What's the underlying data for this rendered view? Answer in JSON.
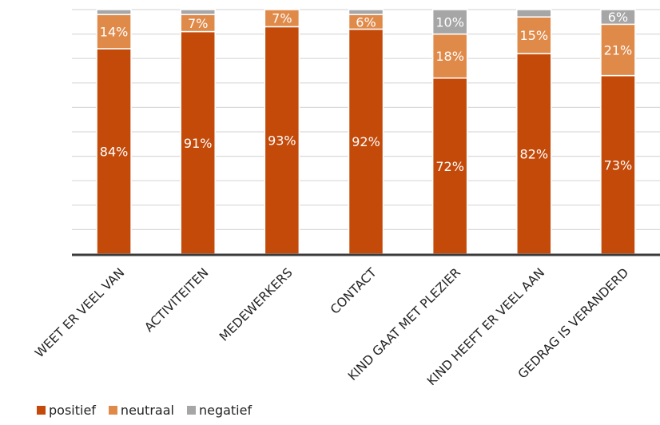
{
  "chart_data": {
    "type": "bar",
    "stacked": true,
    "orientation": "vertical",
    "ylim": [
      0,
      100
    ],
    "grid": true,
    "legend_position": "bottom-left",
    "categories": [
      "WEET ER VEEL VAN",
      "ACTIVITEITEN",
      "MEDEWERKERS",
      "CONTACT",
      "KIND GAAT MET PLEZIER",
      "KIND HEEFT ER VEEL AAN",
      "GEDRAG IS VERANDERD"
    ],
    "series": [
      {
        "name": "positief",
        "color": "#C44A0A",
        "values": [
          84,
          91,
          93,
          92,
          72,
          82,
          73
        ]
      },
      {
        "name": "neutraal",
        "color": "#E08A4A",
        "values": [
          14,
          7,
          7,
          6,
          18,
          15,
          21
        ]
      },
      {
        "name": "negatief",
        "color": "#A6A6A6",
        "values": [
          2,
          2,
          0,
          2,
          10,
          3,
          6
        ]
      }
    ],
    "data_labels": [
      [
        "84%",
        "91%",
        "93%",
        "92%",
        "72%",
        "82%",
        "73%"
      ],
      [
        "14%",
        "7%",
        "7%",
        "6%",
        "18%",
        "15%",
        "21%"
      ],
      [
        "",
        "",
        "",
        "",
        "10%",
        "",
        "6%"
      ]
    ]
  }
}
